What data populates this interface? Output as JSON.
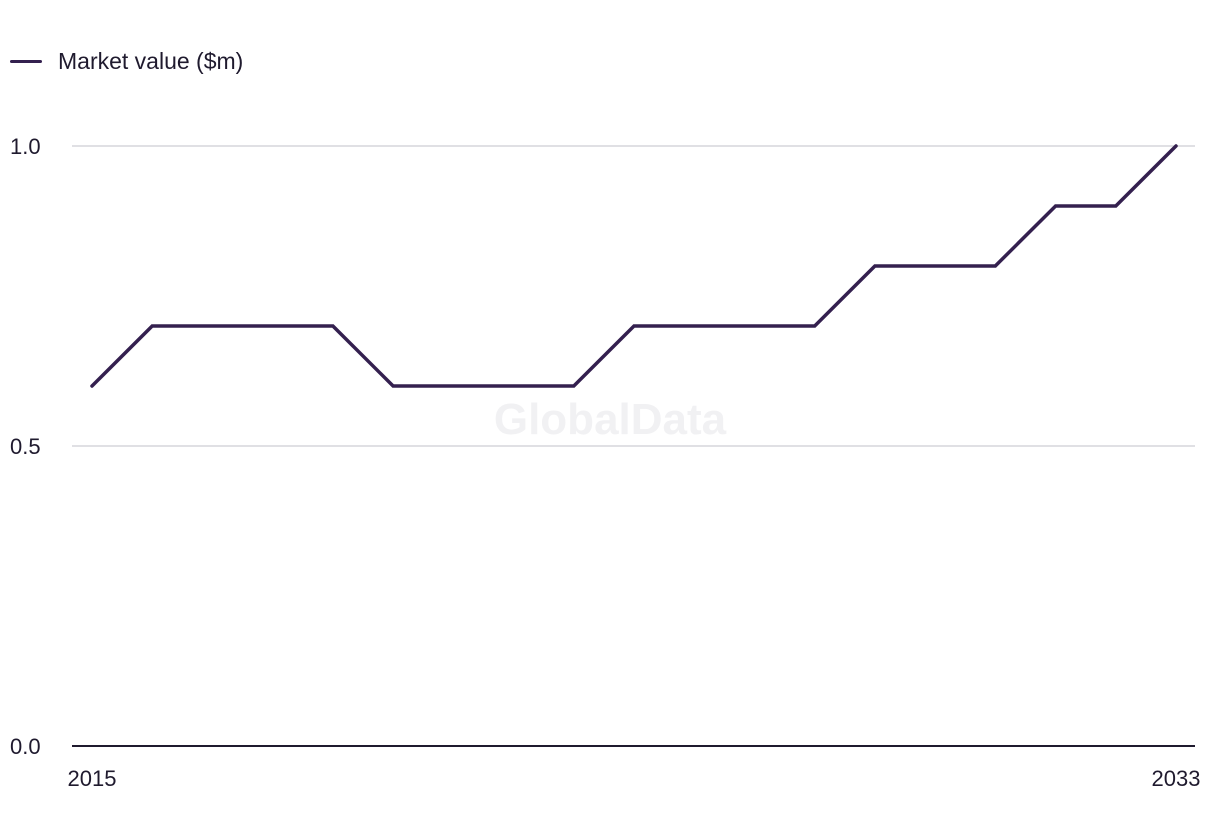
{
  "legend": {
    "label": "Market value ($m)"
  },
  "watermark": "GlobalData",
  "colors": {
    "series": "#34204f",
    "grid": "#d6d6db",
    "axis": "#1f1a2e",
    "text": "#1f1a2e",
    "watermark": "#f1f1f3"
  },
  "chart_data": {
    "type": "line",
    "title": "",
    "xlabel": "",
    "ylabel": "",
    "x": [
      2015,
      2016,
      2017,
      2018,
      2019,
      2020,
      2021,
      2022,
      2023,
      2024,
      2025,
      2026,
      2027,
      2028,
      2029,
      2030,
      2031,
      2032,
      2033
    ],
    "xticks": [
      "2015",
      "2033"
    ],
    "yticks": [
      "0.0",
      "0.5",
      "1.0"
    ],
    "ylim": [
      0,
      1.0
    ],
    "grid": true,
    "legend_position": "top-left",
    "series": [
      {
        "name": "Market value ($m)",
        "values": [
          0.6,
          0.7,
          0.7,
          0.7,
          0.7,
          0.6,
          0.6,
          0.6,
          0.6,
          0.7,
          0.7,
          0.7,
          0.7,
          0.8,
          0.8,
          0.8,
          0.9,
          0.9,
          1.0
        ]
      }
    ]
  }
}
